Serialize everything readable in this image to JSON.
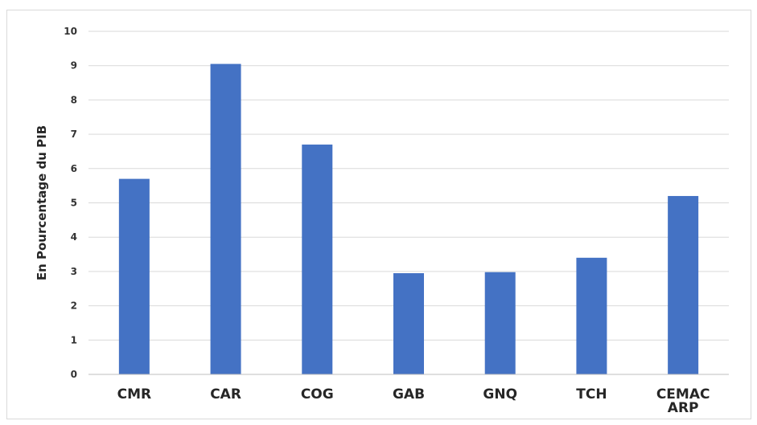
{
  "chart_data": {
    "type": "bar",
    "categories": [
      "CMR",
      "CAR",
      "COG",
      "GAB",
      "GNQ",
      "TCH",
      "CEMAC ARP"
    ],
    "category_lines": [
      [
        "CMR"
      ],
      [
        "CAR"
      ],
      [
        "COG"
      ],
      [
        "GAB"
      ],
      [
        "GNQ"
      ],
      [
        "TCH"
      ],
      [
        "CEMAC",
        "ARP"
      ]
    ],
    "values": [
      5.7,
      9.05,
      6.7,
      2.95,
      2.98,
      3.4,
      5.2
    ],
    "title": "",
    "xlabel": "",
    "ylabel": "En Pourcentage du PIB",
    "ylim": [
      0,
      10
    ],
    "yticks": [
      0,
      1,
      2,
      3,
      4,
      5,
      6,
      7,
      8,
      9,
      10
    ],
    "grid": true,
    "legend": "none",
    "colors": {
      "bar": "#4472c4",
      "grid": "#d9d9d9",
      "axis": "#bfbfbf"
    }
  }
}
